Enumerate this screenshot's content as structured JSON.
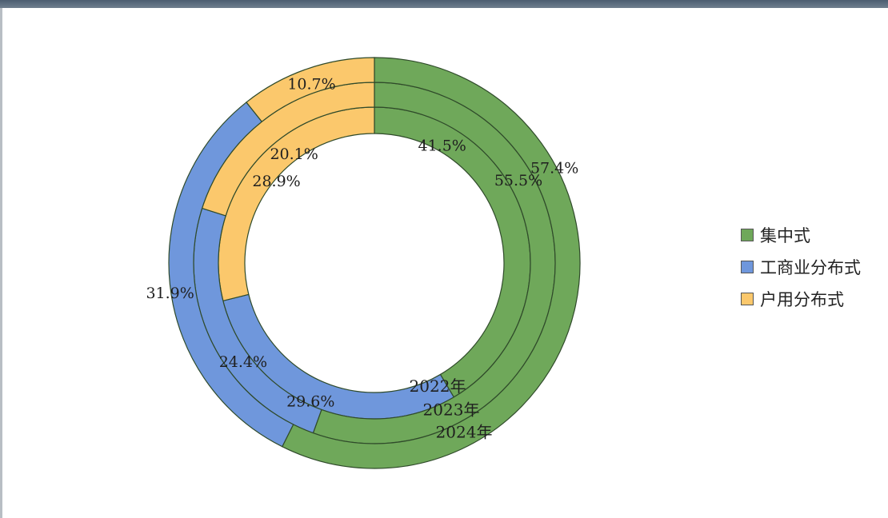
{
  "chart_data": {
    "type": "pie",
    "variant": "multi-ring donut",
    "categories": [
      "集中式",
      "工商业分布式",
      "户用分布式"
    ],
    "colors": [
      "#6fa85a",
      "#6f97dc",
      "#fbc86c"
    ],
    "series": [
      {
        "name": "2022年",
        "ring": "inner",
        "values": [
          41.5,
          29.6,
          28.9
        ],
        "labels": [
          "41.5%",
          "29.6%",
          "28.9%"
        ]
      },
      {
        "name": "2023年",
        "ring": "middle",
        "values": [
          55.5,
          24.4,
          20.1
        ],
        "labels": [
          "55.5%",
          "24.4%",
          "20.1%"
        ]
      },
      {
        "name": "2024年",
        "ring": "outer",
        "values": [
          57.4,
          31.9,
          10.7
        ],
        "labels": [
          "57.4%",
          "31.9%",
          "10.7%"
        ]
      }
    ],
    "legend": {
      "position": "right",
      "items": [
        "集中式",
        "工商业分布式",
        "户用分布式"
      ]
    }
  }
}
